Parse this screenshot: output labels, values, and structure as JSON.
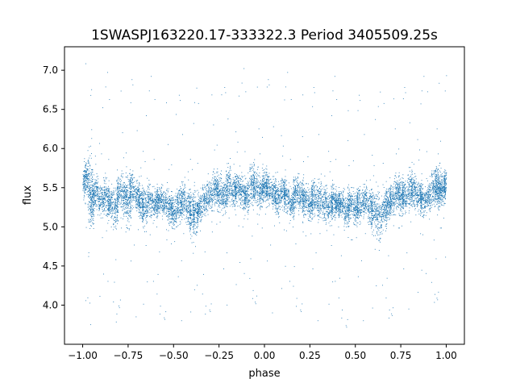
{
  "chart_data": {
    "type": "scatter",
    "title": "1SWASPJ163220.17-333322.3 Period 3405509.25s",
    "xlabel": "phase",
    "ylabel": "flux",
    "xlim": [
      -1.1,
      1.1
    ],
    "ylim": [
      3.5,
      7.3
    ],
    "xticks": [
      -1.0,
      -0.75,
      -0.5,
      -0.25,
      0.0,
      0.25,
      0.5,
      0.75,
      1.0
    ],
    "xtick_labels": [
      "−1.00",
      "−0.75",
      "−0.50",
      "−0.25",
      "0.00",
      "0.25",
      "0.50",
      "0.75",
      "1.00"
    ],
    "yticks": [
      4.0,
      4.5,
      5.0,
      5.5,
      6.0,
      6.5,
      7.0
    ],
    "ytick_labels": [
      "4.0",
      "4.5",
      "5.0",
      "5.5",
      "6.0",
      "6.5",
      "7.0"
    ],
    "grid": false,
    "legend": null,
    "marker_color": "#1f77b4",
    "series": [
      {
        "x": [
          -1.0,
          -0.98,
          -0.96,
          -0.95,
          -0.93,
          -0.9,
          -0.87,
          -0.85,
          -0.82,
          -0.8,
          -0.77,
          -0.75,
          -0.73,
          -0.7,
          -0.68,
          -0.66,
          -0.63,
          -0.6,
          -0.58,
          -0.55,
          -0.52,
          -0.5,
          -0.47,
          -0.45,
          -0.42,
          -0.4,
          -0.38,
          -0.36,
          -0.33,
          -0.3,
          -0.27,
          -0.25,
          -0.22,
          -0.2,
          -0.17,
          -0.15,
          -0.12,
          -0.1,
          -0.07,
          -0.05,
          -0.02,
          0.0,
          0.02,
          0.05,
          0.07,
          0.1,
          0.12,
          0.15,
          0.17,
          0.2,
          0.22,
          0.25,
          0.27,
          0.3,
          0.33,
          0.36,
          0.38,
          0.4,
          0.42,
          0.45,
          0.47,
          0.5,
          0.52,
          0.55,
          0.58,
          0.6,
          0.63,
          0.66,
          0.68,
          0.7,
          0.73,
          0.75,
          0.77,
          0.8,
          0.82,
          0.85,
          0.87,
          0.9,
          0.93,
          0.95,
          0.96,
          0.98,
          1.0
        ],
        "y": [
          5.55,
          5.65,
          5.5,
          5.3,
          5.45,
          5.35,
          5.4,
          5.3,
          5.25,
          5.45,
          5.4,
          5.35,
          5.5,
          5.4,
          5.3,
          5.25,
          5.35,
          5.3,
          5.35,
          5.3,
          5.25,
          5.2,
          5.3,
          5.35,
          5.25,
          5.15,
          5.2,
          5.25,
          5.35,
          5.4,
          5.5,
          5.45,
          5.4,
          5.55,
          5.45,
          5.5,
          5.45,
          5.4,
          5.55,
          5.5,
          5.45,
          5.55,
          5.5,
          5.45,
          5.35,
          5.45,
          5.4,
          5.3,
          5.45,
          5.4,
          5.35,
          5.3,
          5.4,
          5.35,
          5.3,
          5.25,
          5.35,
          5.3,
          5.3,
          5.2,
          5.3,
          5.25,
          5.3,
          5.35,
          5.25,
          5.2,
          5.15,
          5.25,
          5.3,
          5.35,
          5.45,
          5.4,
          5.4,
          5.5,
          5.45,
          5.4,
          5.35,
          5.4,
          5.5,
          5.55,
          5.45,
          5.5,
          5.55
        ],
        "spread": [
          0.25,
          0.35,
          0.6,
          0.45,
          0.3,
          0.3,
          0.35,
          0.3,
          0.4,
          0.3,
          0.35,
          0.5,
          0.35,
          0.3,
          0.3,
          0.4,
          0.3,
          0.3,
          0.25,
          0.25,
          0.3,
          0.3,
          0.35,
          0.35,
          0.35,
          0.45,
          0.4,
          0.3,
          0.3,
          0.3,
          0.3,
          0.35,
          0.3,
          0.4,
          0.3,
          0.3,
          0.3,
          0.35,
          0.4,
          0.35,
          0.3,
          0.3,
          0.3,
          0.3,
          0.3,
          0.3,
          0.3,
          0.3,
          0.3,
          0.3,
          0.3,
          0.3,
          0.35,
          0.4,
          0.35,
          0.3,
          0.3,
          0.25,
          0.25,
          0.3,
          0.3,
          0.3,
          0.35,
          0.3,
          0.35,
          0.4,
          0.45,
          0.4,
          0.3,
          0.3,
          0.3,
          0.35,
          0.3,
          0.4,
          0.3,
          0.3,
          0.3,
          0.3,
          0.35,
          0.35,
          0.3,
          0.3,
          0.3
        ]
      }
    ]
  }
}
